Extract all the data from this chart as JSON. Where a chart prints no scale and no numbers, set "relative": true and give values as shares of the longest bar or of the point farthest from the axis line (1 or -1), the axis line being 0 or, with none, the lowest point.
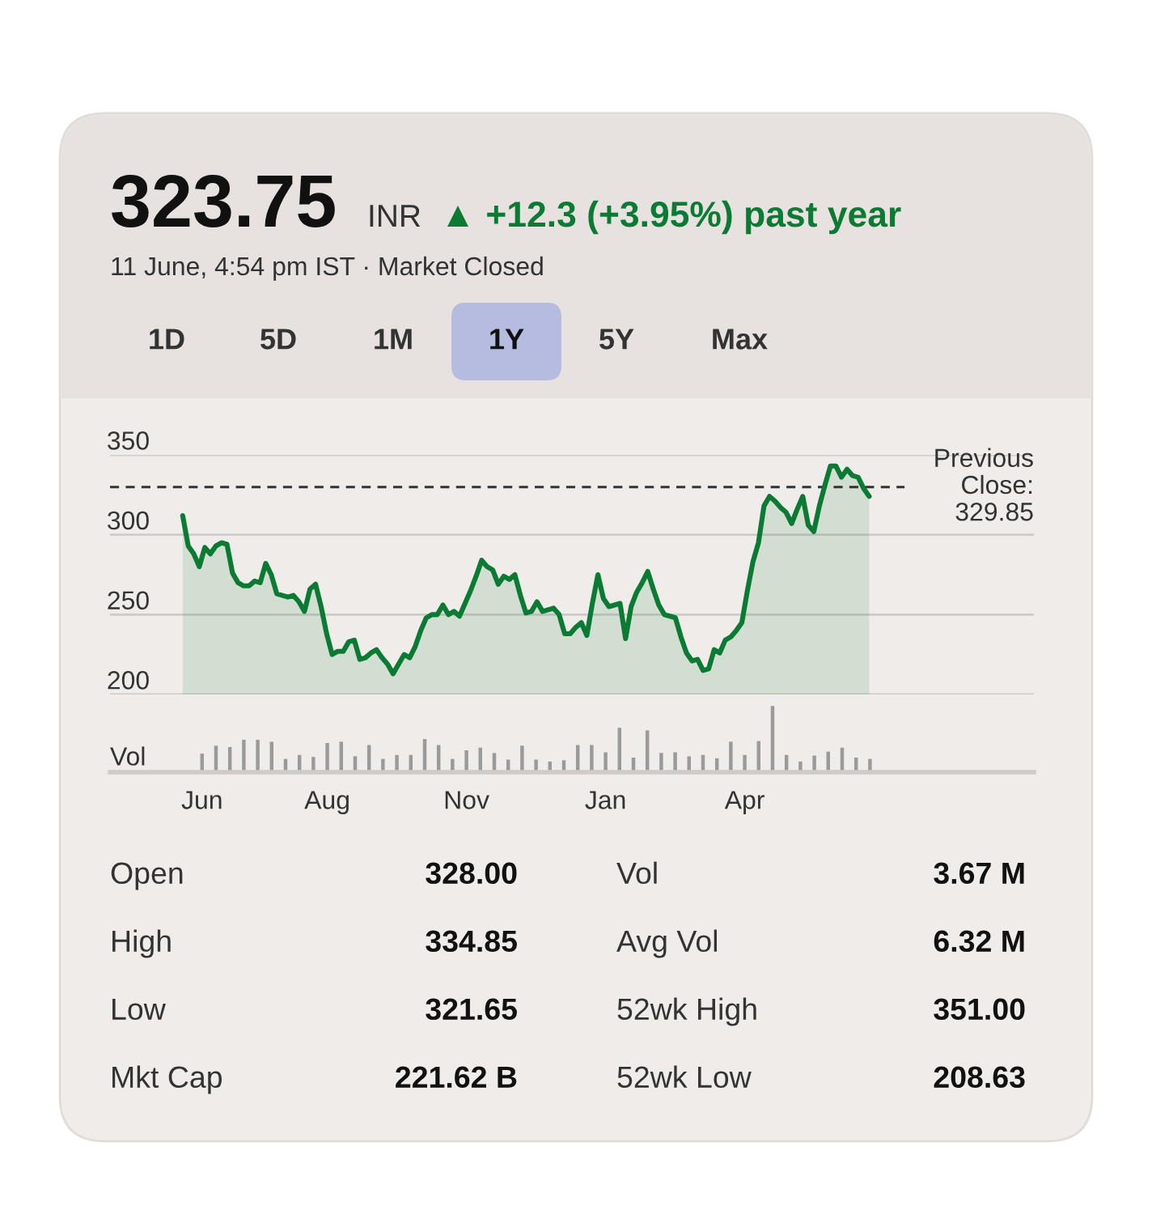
{
  "chart_data": [
    {
      "type": "other",
      "annotations": [
        "323.75",
        "INR",
        "▲ +12.3 (+3.95%) past year",
        "11 June, 4:54 pm IST · Market Closed",
        "1D",
        "5D",
        "1M",
        "1Y",
        "5Y",
        "Max"
      ]
    },
    {
      "type": "area",
      "grid": "y",
      "ylim": [
        200,
        350
      ],
      "yticks": [
        200,
        250,
        300,
        350
      ],
      "tick_labels": "y",
      "categories": [
        null,
        null,
        null,
        null,
        null,
        null,
        null,
        null,
        null,
        null,
        null,
        null,
        null,
        null,
        null,
        null,
        null,
        null,
        null,
        null,
        null,
        null,
        null,
        null,
        null,
        null,
        null,
        null,
        null,
        null,
        null,
        null,
        null,
        null,
        null,
        null,
        null,
        null,
        null,
        null,
        null,
        null,
        null,
        null,
        null,
        null,
        null,
        null,
        null,
        null,
        null,
        null,
        null,
        null,
        null,
        null,
        null,
        null,
        null,
        null,
        null,
        null,
        null,
        null,
        null,
        null,
        null,
        null,
        null,
        null,
        null,
        null,
        null,
        null,
        null,
        null,
        null,
        null,
        null,
        null,
        null,
        null,
        null,
        null,
        null,
        null,
        null,
        null,
        null,
        null,
        null,
        null,
        null,
        null,
        null,
        null,
        null,
        null,
        null,
        null,
        null,
        null,
        null,
        null,
        null,
        null,
        null,
        null,
        null,
        null,
        null,
        null,
        null,
        null,
        null,
        null,
        null,
        null,
        null,
        null,
        null,
        null,
        null,
        null,
        null
      ],
      "ref_lines": [
        {
          "axis": "y",
          "value": 329.85,
          "label": "Previous\nClose:\n329.85",
          "line_style": "dashed",
          "color": "#333333"
        }
      ],
      "series": [
        {
          "color": "#0b7a33",
          "values": [
            312,
            293,
            288,
            280,
            292,
            288,
            293,
            295,
            294,
            276,
            270,
            268,
            268,
            271,
            270,
            282,
            275,
            263,
            262,
            261,
            262,
            258,
            252,
            266,
            269,
            255,
            238,
            225,
            227,
            227,
            233,
            234,
            222,
            223,
            226,
            228,
            223,
            219,
            213,
            219,
            225,
            223,
            230,
            240,
            248,
            250,
            250,
            256,
            250,
            252,
            249,
            257,
            265,
            274,
            284,
            280,
            278,
            269,
            274,
            272,
            275,
            262,
            251,
            252,
            258,
            252,
            253,
            254,
            250,
            238,
            238,
            242,
            245,
            237,
            257,
            275,
            260,
            255,
            256,
            257,
            235,
            255,
            264,
            270,
            277,
            266,
            256,
            250,
            249,
            248,
            236,
            226,
            221,
            222,
            215,
            216,
            228,
            226,
            234,
            236,
            240,
            245,
            265,
            283,
            295,
            318,
            324,
            321,
            317,
            314,
            307,
            316,
            324,
            306,
            302,
            318,
            331,
            343,
            343,
            336,
            341,
            337,
            336,
            329,
            324
          ]
        }
      ]
    },
    {
      "type": "bar",
      "relative": true,
      "ylabel": "Vol",
      "categories": [
        "Jun",
        null,
        null,
        null,
        null,
        null,
        null,
        null,
        null,
        "Aug",
        null,
        null,
        null,
        null,
        null,
        null,
        null,
        null,
        null,
        "Nov",
        null,
        null,
        null,
        null,
        null,
        null,
        null,
        null,
        null,
        "Jan",
        null,
        null,
        null,
        null,
        null,
        null,
        null,
        null,
        null,
        "Apr",
        null,
        null,
        null,
        null,
        null,
        null,
        null,
        null,
        null
      ],
      "series": [
        {
          "color": "#9a9a9a",
          "values": [
            0.28,
            0.4,
            0.38,
            0.49,
            0.49,
            0.46,
            0.2,
            0.26,
            0.23,
            0.44,
            0.46,
            0.24,
            0.41,
            0.2,
            0.26,
            0.26,
            0.5,
            0.41,
            0.2,
            0.33,
            0.37,
            0.29,
            0.19,
            0.4,
            0.19,
            0.16,
            0.18,
            0.41,
            0.41,
            0.3,
            0.67,
            0.22,
            0.63,
            0.29,
            0.3,
            0.24,
            0.26,
            0.21,
            0.46,
            0.26,
            0.47,
            1,
            0.26,
            0.16,
            0.25,
            0.31,
            0.37,
            0.22,
            0.2
          ]
        }
      ]
    },
    {
      "type": "other",
      "annotations": [
        "Open",
        "328.00",
        "Vol",
        "3.67 M",
        "High",
        "334.85",
        "Avg Vol",
        "6.32 M",
        "Low",
        "321.65",
        "52wk High",
        "351.00",
        "Mkt Cap",
        "221.62 B",
        "52wk Low",
        "208.63"
      ]
    }
  ]
}
